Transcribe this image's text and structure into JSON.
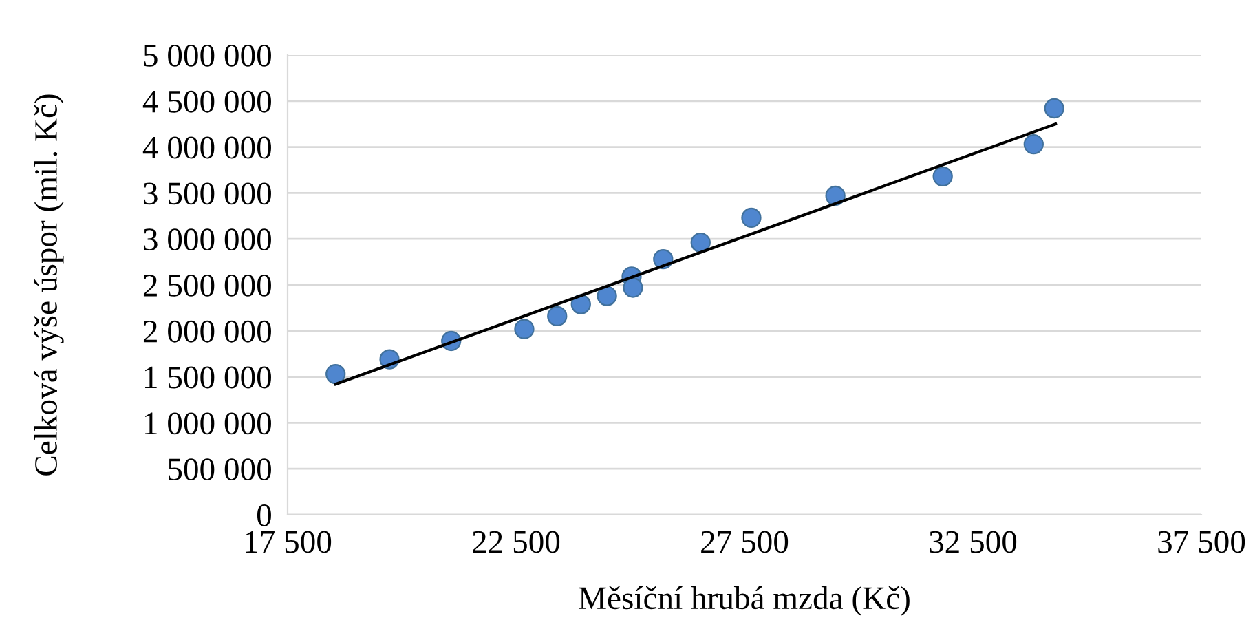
{
  "chart_data": {
    "type": "scatter",
    "xlabel": "Měsíční hrubá mzda (Kč)",
    "ylabel": "Celková výše úspor (mil. Kč)",
    "series": [
      {
        "color": "#4f86cf",
        "x": [
          18550,
          19730,
          21080,
          22680,
          23400,
          23920,
          24490,
          25030,
          25060,
          25720,
          26540,
          27650,
          29490,
          31840,
          33830,
          34280
        ],
        "values": [
          1530000,
          1690000,
          1890000,
          2020000,
          2160000,
          2290000,
          2380000,
          2590000,
          2470000,
          2780000,
          2960000,
          3230000,
          3470000,
          3680000,
          4030000,
          4420000
        ],
        "marker": "circle"
      },
      {
        "type": "line",
        "color": "#000000",
        "x": [
          18550,
          34310
        ],
        "values": [
          1420000,
          4250000
        ],
        "marker": "none"
      }
    ],
    "xlim": [
      17500,
      37500
    ],
    "xticks": [
      {
        "value": 17500,
        "label": "17 500"
      },
      {
        "value": 22500,
        "label": "22 500"
      },
      {
        "value": 27500,
        "label": "27 500"
      },
      {
        "value": 32500,
        "label": "32 500"
      },
      {
        "value": 37500,
        "label": "37 500"
      }
    ],
    "ylim": [
      0,
      5000000
    ],
    "yticks": [
      0,
      {
        "value": 500000,
        "label": "500 000"
      },
      {
        "value": 1000000,
        "label": "1 000 000"
      },
      {
        "value": 1500000,
        "label": "1 500 000"
      },
      {
        "value": 2000000,
        "label": "2 000 000"
      },
      {
        "value": 2500000,
        "label": "2 500 000"
      },
      {
        "value": 3000000,
        "label": "3 000 000"
      },
      {
        "value": 3500000,
        "label": "3 500 000"
      },
      {
        "value": 4000000,
        "label": "4 000 000"
      },
      {
        "value": 4500000,
        "label": "4 500 000"
      },
      {
        "value": 5000000,
        "label": "5 000 000"
      }
    ],
    "grid": "y"
  }
}
